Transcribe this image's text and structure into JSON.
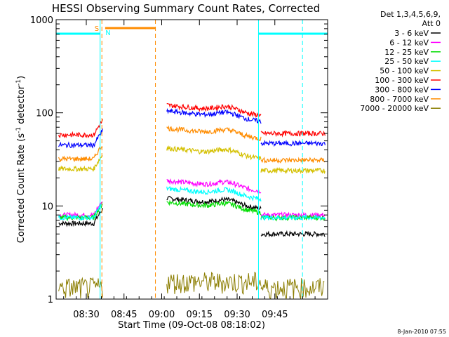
{
  "chart_data": {
    "type": "line",
    "title": "HESSI Observing Summary Count Rates, Corrected",
    "xlabel": "Start Time (09-Oct-08 08:18:02)",
    "ylabel_main": "Corrected Count Rate (s",
    "ylabel_sup1": "-1",
    "ylabel_mid": " detector",
    "ylabel_sup2": "-1",
    "ylabel_end": ")",
    "footer": "8-Jan-2010 07:55",
    "yscale": "log",
    "ylim": [
      1,
      1000
    ],
    "xlim_minutes_after_0818": [
      0,
      108
    ],
    "x_ticks": [
      "08:30",
      "08:45",
      "09:00",
      "09:15",
      "09:30",
      "09:45"
    ],
    "x_tick_minutes": [
      12,
      27,
      42,
      57,
      72,
      87
    ],
    "y_ticks": [
      "1",
      "10",
      "100",
      "1000"
    ],
    "y_tick_values": [
      1,
      10,
      100,
      1000
    ],
    "legend_header": [
      "Det 1,3,4,5,6,9,",
      "Att 0"
    ],
    "series": [
      {
        "name": "3 - 6 keV",
        "color": "#000000",
        "levels": [
          6.5,
          11,
          5
        ]
      },
      {
        "name": "6 - 12 keV",
        "color": "#ff00ff",
        "levels": [
          8,
          17,
          8
        ]
      },
      {
        "name": "12 - 25 keV",
        "color": "#00dd00",
        "levels": [
          7.5,
          10,
          7.5
        ]
      },
      {
        "name": "25 - 50 keV",
        "color": "#00ffff",
        "levels": [
          7.5,
          14,
          7.5
        ]
      },
      {
        "name": "50 - 100 keV",
        "color": "#d4c000",
        "levels": [
          25,
          38,
          24
        ]
      },
      {
        "name": "100 - 300 keV",
        "color": "#ff0000",
        "levels": [
          58,
          110,
          60
        ]
      },
      {
        "name": "300 - 800 keV",
        "color": "#0000ff",
        "levels": [
          45,
          95,
          47
        ]
      },
      {
        "name": "800 - 7000 keV",
        "color": "#ff8c00",
        "levels": [
          32,
          62,
          31
        ]
      },
      {
        "name": "7000 - 20000 keV",
        "color": "#8b7d00",
        "levels": [
          1.3,
          1.5,
          1.3
        ]
      }
    ],
    "annotations": [
      {
        "text": "S",
        "color": "#ff8c00"
      },
      {
        "text": "N",
        "color": "#00ffff"
      }
    ],
    "marker_lines_minutes": [
      {
        "minute": 17.5,
        "color": "#00ffff",
        "style": "solid"
      },
      {
        "minute": 18.2,
        "color": "#ff8c00",
        "style": "dashed"
      },
      {
        "minute": 39.5,
        "color": "#ff8c00",
        "style": "dashed"
      },
      {
        "minute": 80.5,
        "color": "#00ffff",
        "style": "solid"
      },
      {
        "minute": 98.0,
        "color": "#00ffff",
        "style": "dashed"
      }
    ],
    "grid": false,
    "legend": "right"
  }
}
